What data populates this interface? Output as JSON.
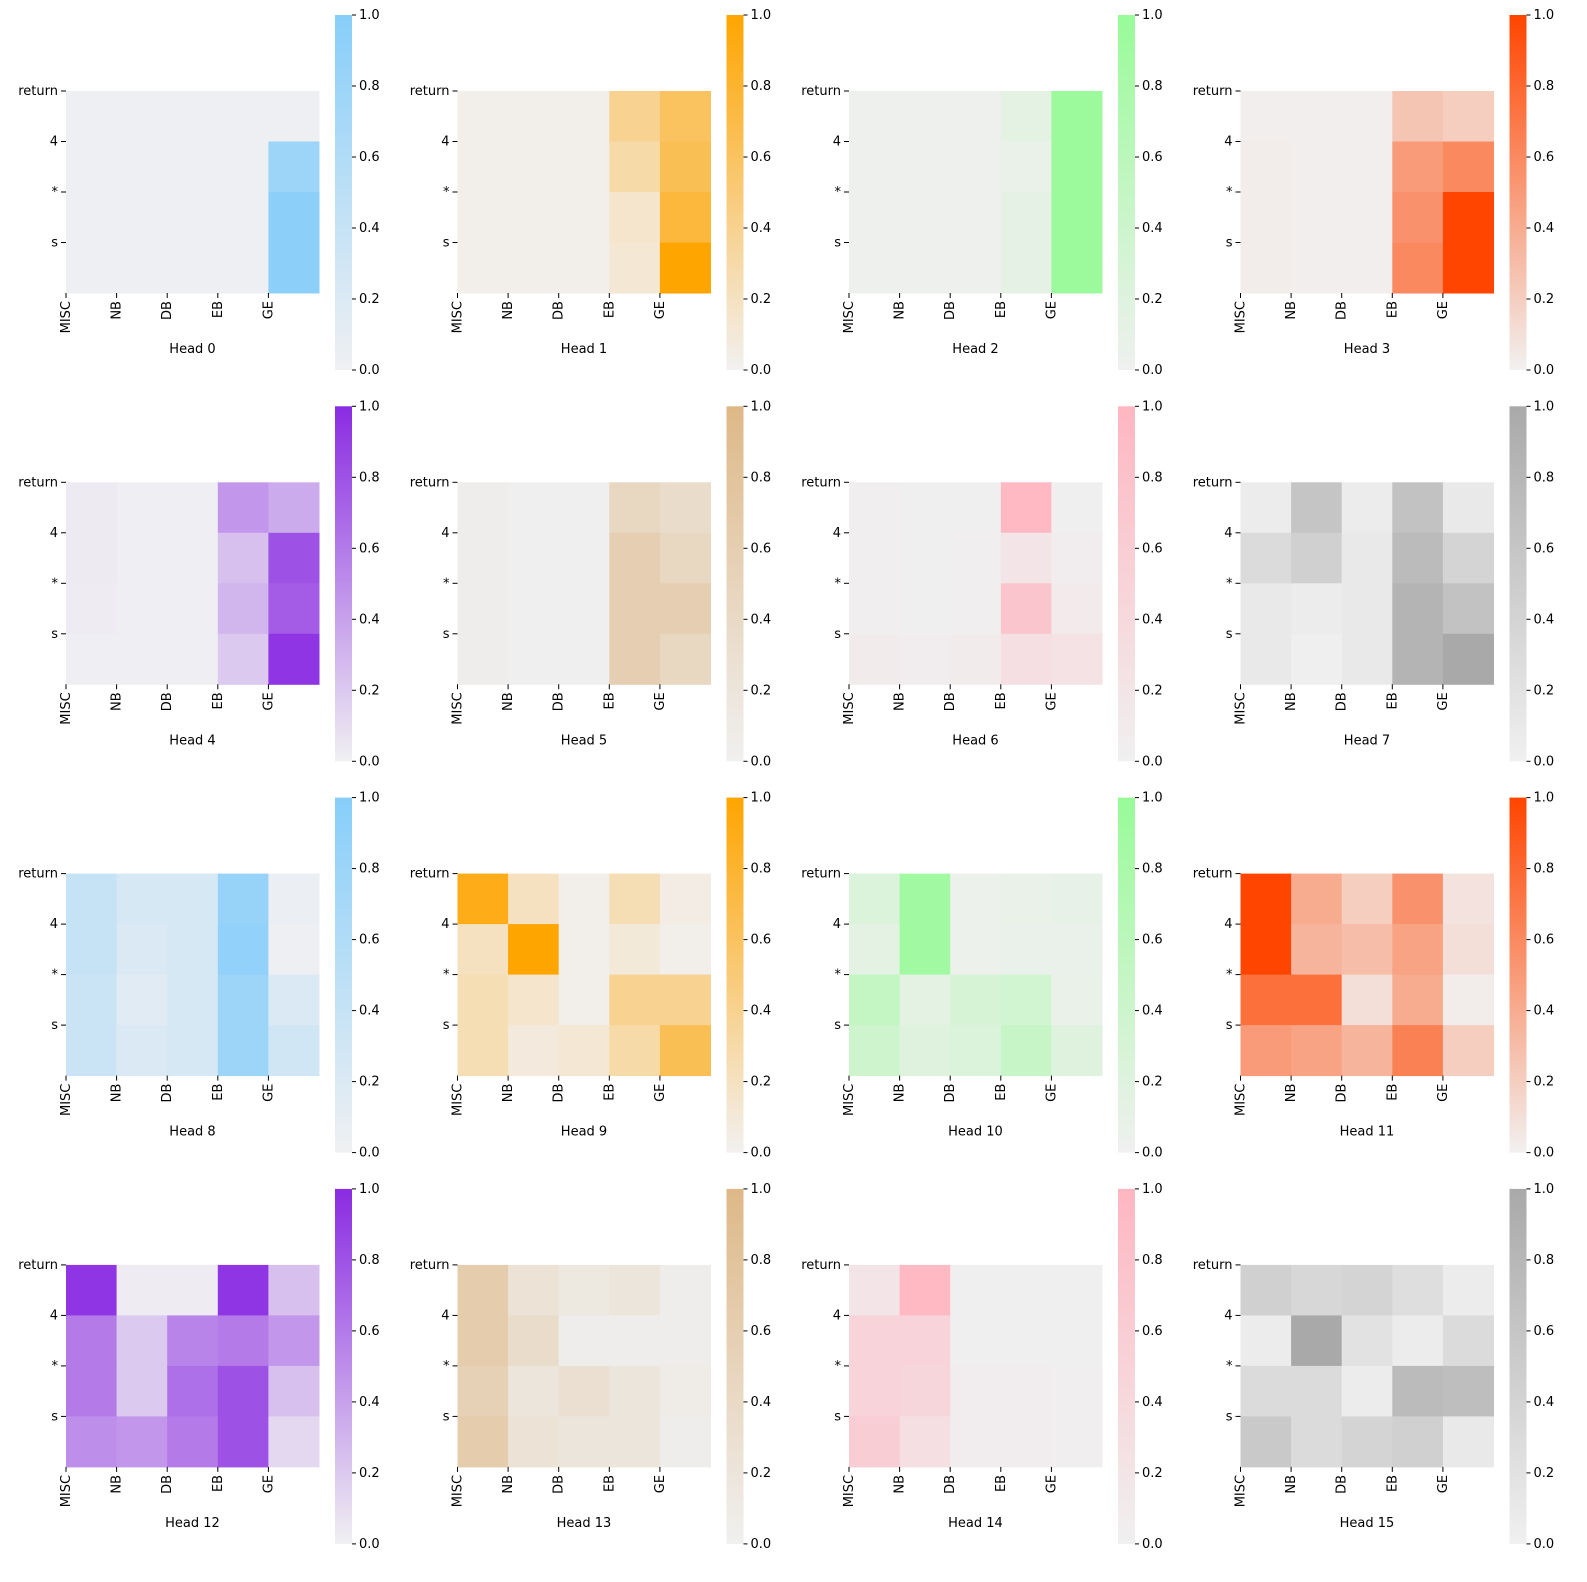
{
  "chart_data": [
    {
      "type": "heatmap",
      "xlabel": "Head 0",
      "rows": [
        "return",
        "4",
        "*",
        "s"
      ],
      "columns": [
        "MISC",
        "NB",
        "DB",
        "EB",
        "GE"
      ],
      "colormap": [
        "#f0f0f2",
        "#87cefa"
      ],
      "clim": [
        0,
        1
      ],
      "cticks": [
        {
          "value": 0,
          "label": "0.0"
        },
        {
          "value": 0.2,
          "label": "0.2"
        },
        {
          "value": 0.4,
          "label": "0.4"
        },
        {
          "value": 0.6,
          "label": "0.6"
        },
        {
          "value": 0.8,
          "label": "0.8"
        },
        {
          "value": 1,
          "label": "1.0"
        }
      ],
      "values": [
        [
          0.02,
          0.02,
          0.02,
          0.02,
          0.02
        ],
        [
          0.02,
          0.02,
          0.02,
          0.02,
          0.8
        ],
        [
          0.02,
          0.02,
          0.02,
          0.02,
          0.95
        ],
        [
          0.02,
          0.02,
          0.02,
          0.02,
          0.95
        ]
      ]
    },
    {
      "type": "heatmap",
      "xlabel": "Head 1",
      "rows": [
        "return",
        "4",
        "*",
        "s"
      ],
      "columns": [
        "MISC",
        "NB",
        "DB",
        "EB",
        "GE"
      ],
      "colormap": [
        "#f2f0f0",
        "#ffa500"
      ],
      "clim": [
        0,
        1
      ],
      "cticks": [
        {
          "value": 0,
          "label": "0.0"
        },
        {
          "value": 0.2,
          "label": "0.2"
        },
        {
          "value": 0.4,
          "label": "0.4"
        },
        {
          "value": 0.6,
          "label": "0.6"
        },
        {
          "value": 0.8,
          "label": "0.8"
        },
        {
          "value": 1,
          "label": "1.0"
        }
      ],
      "values": [
        [
          0.02,
          0.02,
          0.02,
          0.4,
          0.6
        ],
        [
          0.02,
          0.02,
          0.02,
          0.3,
          0.65
        ],
        [
          0.02,
          0.02,
          0.02,
          0.15,
          0.75
        ],
        [
          0.02,
          0.02,
          0.02,
          0.12,
          1.0
        ]
      ]
    },
    {
      "type": "heatmap",
      "xlabel": "Head 2",
      "rows": [
        "return",
        "4",
        "*",
        "s"
      ],
      "columns": [
        "MISC",
        "NB",
        "DB",
        "EB",
        "GE"
      ],
      "colormap": [
        "#f0f0f0",
        "#98fb98"
      ],
      "clim": [
        0,
        1
      ],
      "cticks": [
        {
          "value": 0,
          "label": "0.0"
        },
        {
          "value": 0.2,
          "label": "0.2"
        },
        {
          "value": 0.4,
          "label": "0.4"
        },
        {
          "value": 0.6,
          "label": "0.6"
        },
        {
          "value": 0.8,
          "label": "0.8"
        },
        {
          "value": 1,
          "label": "1.0"
        }
      ],
      "values": [
        [
          0.03,
          0.03,
          0.03,
          0.15,
          0.95
        ],
        [
          0.03,
          0.03,
          0.03,
          0.08,
          0.95
        ],
        [
          0.03,
          0.03,
          0.03,
          0.12,
          0.95
        ],
        [
          0.03,
          0.03,
          0.03,
          0.12,
          0.95
        ]
      ]
    },
    {
      "type": "heatmap",
      "xlabel": "Head 3",
      "rows": [
        "return",
        "4",
        "*",
        "s"
      ],
      "columns": [
        "MISC",
        "NB",
        "DB",
        "EB",
        "GE"
      ],
      "colormap": [
        "#f2f0f0",
        "#ff4500"
      ],
      "clim": [
        0,
        1
      ],
      "cticks": [
        {
          "value": 0,
          "label": "0.0"
        },
        {
          "value": 0.2,
          "label": "0.2"
        },
        {
          "value": 0.4,
          "label": "0.4"
        },
        {
          "value": 0.6,
          "label": "0.6"
        },
        {
          "value": 0.8,
          "label": "0.8"
        },
        {
          "value": 1,
          "label": "1.0"
        }
      ],
      "values": [
        [
          0.01,
          0.01,
          0.01,
          0.25,
          0.2
        ],
        [
          0.02,
          0.01,
          0.01,
          0.5,
          0.6
        ],
        [
          0.02,
          0.01,
          0.01,
          0.55,
          1.0
        ],
        [
          0.02,
          0.01,
          0.01,
          0.6,
          1.0
        ]
      ]
    },
    {
      "type": "heatmap",
      "xlabel": "Head 4",
      "rows": [
        "return",
        "4",
        "*",
        "s"
      ],
      "columns": [
        "MISC",
        "NB",
        "DB",
        "EB",
        "GE"
      ],
      "colormap": [
        "#f0f0f2",
        "#8a2be2"
      ],
      "clim": [
        0,
        1
      ],
      "cticks": [
        {
          "value": 0,
          "label": "0.0"
        },
        {
          "value": 0.2,
          "label": "0.2"
        },
        {
          "value": 0.4,
          "label": "0.4"
        },
        {
          "value": 0.6,
          "label": "0.6"
        },
        {
          "value": 0.8,
          "label": "0.8"
        },
        {
          "value": 1,
          "label": "1.0"
        }
      ],
      "values": [
        [
          0.03,
          0.01,
          0.01,
          0.45,
          0.35
        ],
        [
          0.03,
          0.01,
          0.01,
          0.25,
          0.8
        ],
        [
          0.02,
          0.01,
          0.01,
          0.3,
          0.75
        ],
        [
          0.01,
          0.01,
          0.01,
          0.2,
          0.95
        ]
      ]
    },
    {
      "type": "heatmap",
      "xlabel": "Head 5",
      "rows": [
        "return",
        "4",
        "*",
        "s"
      ],
      "columns": [
        "MISC",
        "NB",
        "DB",
        "EB",
        "GE"
      ],
      "colormap": [
        "#f0f0f0",
        "#deb887"
      ],
      "clim": [
        0,
        1
      ],
      "cticks": [
        {
          "value": 0,
          "label": "0.0"
        },
        {
          "value": 0.2,
          "label": "0.2"
        },
        {
          "value": 0.4,
          "label": "0.4"
        },
        {
          "value": 0.6,
          "label": "0.6"
        },
        {
          "value": 0.8,
          "label": "0.8"
        },
        {
          "value": 1,
          "label": "1.0"
        }
      ],
      "values": [
        [
          0.05,
          0.01,
          0.01,
          0.45,
          0.35
        ],
        [
          0.05,
          0.01,
          0.01,
          0.6,
          0.45
        ],
        [
          0.05,
          0.01,
          0.01,
          0.6,
          0.6
        ],
        [
          0.05,
          0.01,
          0.01,
          0.6,
          0.45
        ]
      ]
    },
    {
      "type": "heatmap",
      "xlabel": "Head 6",
      "rows": [
        "return",
        "4",
        "*",
        "s"
      ],
      "columns": [
        "MISC",
        "NB",
        "DB",
        "EB",
        "GE"
      ],
      "colormap": [
        "#f0f0f0",
        "#ffb6c1"
      ],
      "clim": [
        0,
        1
      ],
      "cticks": [
        {
          "value": 0,
          "label": "0.0"
        },
        {
          "value": 0.2,
          "label": "0.2"
        },
        {
          "value": 0.4,
          "label": "0.4"
        },
        {
          "value": 0.6,
          "label": "0.6"
        },
        {
          "value": 0.8,
          "label": "0.8"
        },
        {
          "value": 1,
          "label": "1.0"
        }
      ],
      "values": [
        [
          0.03,
          0.01,
          0.02,
          0.95,
          0.02
        ],
        [
          0.03,
          0.02,
          0.03,
          0.2,
          0.05
        ],
        [
          0.03,
          0.02,
          0.03,
          0.75,
          0.1
        ],
        [
          0.08,
          0.05,
          0.08,
          0.3,
          0.25
        ]
      ]
    },
    {
      "type": "heatmap",
      "xlabel": "Head 7",
      "rows": [
        "return",
        "4",
        "*",
        "s"
      ],
      "columns": [
        "MISC",
        "NB",
        "DB",
        "EB",
        "GE"
      ],
      "colormap": [
        "#f0f0f0",
        "#a9a9a9"
      ],
      "clim": [
        0,
        1
      ],
      "cticks": [
        {
          "value": 0,
          "label": "0.0"
        },
        {
          "value": 0.2,
          "label": "0.2"
        },
        {
          "value": 0.4,
          "label": "0.4"
        },
        {
          "value": 0.6,
          "label": "0.6"
        },
        {
          "value": 0.8,
          "label": "0.8"
        },
        {
          "value": 1,
          "label": "1.0"
        }
      ],
      "values": [
        [
          0.05,
          0.6,
          0.05,
          0.65,
          0.1
        ],
        [
          0.3,
          0.45,
          0.1,
          0.75,
          0.4
        ],
        [
          0.1,
          0.05,
          0.1,
          0.85,
          0.65
        ],
        [
          0.1,
          0.02,
          0.1,
          0.85,
          1.0
        ]
      ]
    },
    {
      "type": "heatmap",
      "xlabel": "Head 8",
      "rows": [
        "return",
        "4",
        "*",
        "s"
      ],
      "columns": [
        "MISC",
        "NB",
        "DB",
        "EB",
        "GE"
      ],
      "colormap": [
        "#f0f0f2",
        "#87cefa"
      ],
      "clim": [
        0,
        1
      ],
      "cticks": [
        {
          "value": 0,
          "label": "0.0"
        },
        {
          "value": 0.2,
          "label": "0.2"
        },
        {
          "value": 0.4,
          "label": "0.4"
        },
        {
          "value": 0.6,
          "label": "0.6"
        },
        {
          "value": 0.8,
          "label": "0.8"
        },
        {
          "value": 1,
          "label": "1.0"
        }
      ],
      "values": [
        [
          0.4,
          0.25,
          0.25,
          0.85,
          0.05
        ],
        [
          0.4,
          0.2,
          0.25,
          0.9,
          0.02
        ],
        [
          0.35,
          0.15,
          0.25,
          0.8,
          0.2
        ],
        [
          0.35,
          0.2,
          0.25,
          0.8,
          0.3
        ]
      ]
    },
    {
      "type": "heatmap",
      "xlabel": "Head 9",
      "rows": [
        "return",
        "4",
        "*",
        "s"
      ],
      "columns": [
        "MISC",
        "NB",
        "DB",
        "EB",
        "GE"
      ],
      "colormap": [
        "#f2f0f0",
        "#ffa500"
      ],
      "clim": [
        0,
        1
      ],
      "cticks": [
        {
          "value": 0,
          "label": "0.0"
        },
        {
          "value": 0.2,
          "label": "0.2"
        },
        {
          "value": 0.4,
          "label": "0.4"
        },
        {
          "value": 0.6,
          "label": "0.6"
        },
        {
          "value": 0.8,
          "label": "0.8"
        },
        {
          "value": 1,
          "label": "1.0"
        }
      ],
      "values": [
        [
          0.9,
          0.2,
          0.03,
          0.25,
          0.05
        ],
        [
          0.2,
          1.0,
          0.03,
          0.1,
          0.03
        ],
        [
          0.25,
          0.15,
          0.03,
          0.4,
          0.4
        ],
        [
          0.25,
          0.08,
          0.12,
          0.3,
          0.65
        ]
      ]
    },
    {
      "type": "heatmap",
      "xlabel": "Head 10",
      "rows": [
        "return",
        "4",
        "*",
        "s"
      ],
      "columns": [
        "MISC",
        "NB",
        "DB",
        "EB",
        "GE"
      ],
      "colormap": [
        "#f0f0f0",
        "#98fb98"
      ],
      "clim": [
        0,
        1
      ],
      "cticks": [
        {
          "value": 0,
          "label": "0.0"
        },
        {
          "value": 0.2,
          "label": "0.2"
        },
        {
          "value": 0.4,
          "label": "0.4"
        },
        {
          "value": 0.6,
          "label": "0.6"
        },
        {
          "value": 0.8,
          "label": "0.8"
        },
        {
          "value": 1,
          "label": "1.0"
        }
      ],
      "values": [
        [
          0.25,
          0.9,
          0.05,
          0.08,
          0.1
        ],
        [
          0.15,
          0.9,
          0.05,
          0.07,
          0.07
        ],
        [
          0.5,
          0.15,
          0.3,
          0.35,
          0.08
        ],
        [
          0.4,
          0.2,
          0.25,
          0.45,
          0.2
        ]
      ]
    },
    {
      "type": "heatmap",
      "xlabel": "Head 11",
      "rows": [
        "return",
        "4",
        "*",
        "s"
      ],
      "columns": [
        "MISC",
        "NB",
        "DB",
        "EB",
        "GE"
      ],
      "colormap": [
        "#f2f0f0",
        "#ff4500"
      ],
      "clim": [
        0,
        1
      ],
      "cticks": [
        {
          "value": 0,
          "label": "0.0"
        },
        {
          "value": 0.2,
          "label": "0.2"
        },
        {
          "value": 0.4,
          "label": "0.4"
        },
        {
          "value": 0.6,
          "label": "0.6"
        },
        {
          "value": 0.8,
          "label": "0.8"
        },
        {
          "value": 1,
          "label": "1.0"
        }
      ],
      "values": [
        [
          1.0,
          0.4,
          0.2,
          0.55,
          0.08
        ],
        [
          1.0,
          0.35,
          0.3,
          0.45,
          0.1
        ],
        [
          0.75,
          0.75,
          0.1,
          0.4,
          0.02
        ],
        [
          0.5,
          0.45,
          0.35,
          0.65,
          0.2
        ]
      ]
    },
    {
      "type": "heatmap",
      "xlabel": "Head 12",
      "rows": [
        "return",
        "4",
        "*",
        "s"
      ],
      "columns": [
        "MISC",
        "NB",
        "DB",
        "EB",
        "GE"
      ],
      "colormap": [
        "#f0f0f2",
        "#8a2be2"
      ],
      "clim": [
        0,
        1
      ],
      "cticks": [
        {
          "value": 0,
          "label": "0.0"
        },
        {
          "value": 0.2,
          "label": "0.2"
        },
        {
          "value": 0.4,
          "label": "0.4"
        },
        {
          "value": 0.6,
          "label": "0.6"
        },
        {
          "value": 0.8,
          "label": "0.8"
        },
        {
          "value": 1,
          "label": "1.0"
        }
      ],
      "values": [
        [
          0.95,
          0.02,
          0.02,
          0.95,
          0.25
        ],
        [
          0.6,
          0.2,
          0.55,
          0.6,
          0.45
        ],
        [
          0.6,
          0.2,
          0.65,
          0.8,
          0.25
        ],
        [
          0.5,
          0.45,
          0.6,
          0.8,
          0.12
        ]
      ]
    },
    {
      "type": "heatmap",
      "xlabel": "Head 13",
      "rows": [
        "return",
        "4",
        "*",
        "s"
      ],
      "columns": [
        "MISC",
        "NB",
        "DB",
        "EB",
        "GE"
      ],
      "colormap": [
        "#f0f0f0",
        "#deb887"
      ],
      "clim": [
        0,
        1
      ],
      "cticks": [
        {
          "value": 0,
          "label": "0.0"
        },
        {
          "value": 0.2,
          "label": "0.2"
        },
        {
          "value": 0.4,
          "label": "0.4"
        },
        {
          "value": 0.6,
          "label": "0.6"
        },
        {
          "value": 0.8,
          "label": "0.8"
        },
        {
          "value": 1,
          "label": "1.0"
        }
      ],
      "values": [
        [
          0.65,
          0.25,
          0.15,
          0.2,
          0.05
        ],
        [
          0.65,
          0.35,
          0.05,
          0.05,
          0.05
        ],
        [
          0.55,
          0.2,
          0.3,
          0.2,
          0.08
        ],
        [
          0.65,
          0.25,
          0.2,
          0.2,
          0.05
        ]
      ]
    },
    {
      "type": "heatmap",
      "xlabel": "Head 14",
      "rows": [
        "return",
        "4",
        "*",
        "s"
      ],
      "columns": [
        "MISC",
        "NB",
        "DB",
        "EB",
        "GE"
      ],
      "colormap": [
        "#f0f0f0",
        "#ffb6c1"
      ],
      "clim": [
        0,
        1
      ],
      "cticks": [
        {
          "value": 0,
          "label": "0.0"
        },
        {
          "value": 0.2,
          "label": "0.2"
        },
        {
          "value": 0.4,
          "label": "0.4"
        },
        {
          "value": 0.6,
          "label": "0.6"
        },
        {
          "value": 0.8,
          "label": "0.8"
        },
        {
          "value": 1,
          "label": "1.0"
        }
      ],
      "values": [
        [
          0.2,
          0.95,
          0.02,
          0.02,
          0.02
        ],
        [
          0.5,
          0.5,
          0.02,
          0.02,
          0.02
        ],
        [
          0.5,
          0.45,
          0.05,
          0.05,
          0.03
        ],
        [
          0.6,
          0.3,
          0.05,
          0.05,
          0.03
        ]
      ]
    },
    {
      "type": "heatmap",
      "xlabel": "Head 15",
      "rows": [
        "return",
        "4",
        "*",
        "s"
      ],
      "columns": [
        "MISC",
        "NB",
        "DB",
        "EB",
        "GE"
      ],
      "colormap": [
        "#f0f0f0",
        "#a9a9a9"
      ],
      "clim": [
        0,
        1
      ],
      "cticks": [
        {
          "value": 0,
          "label": "0.0"
        },
        {
          "value": 0.2,
          "label": "0.2"
        },
        {
          "value": 0.4,
          "label": "0.4"
        },
        {
          "value": 0.6,
          "label": "0.6"
        },
        {
          "value": 0.8,
          "label": "0.8"
        },
        {
          "value": 1,
          "label": "1.0"
        }
      ],
      "values": [
        [
          0.45,
          0.35,
          0.4,
          0.25,
          0.05
        ],
        [
          0.05,
          1.0,
          0.2,
          0.05,
          0.3
        ],
        [
          0.3,
          0.3,
          0.05,
          0.75,
          0.7
        ],
        [
          0.55,
          0.3,
          0.4,
          0.45,
          0.1
        ]
      ]
    }
  ]
}
